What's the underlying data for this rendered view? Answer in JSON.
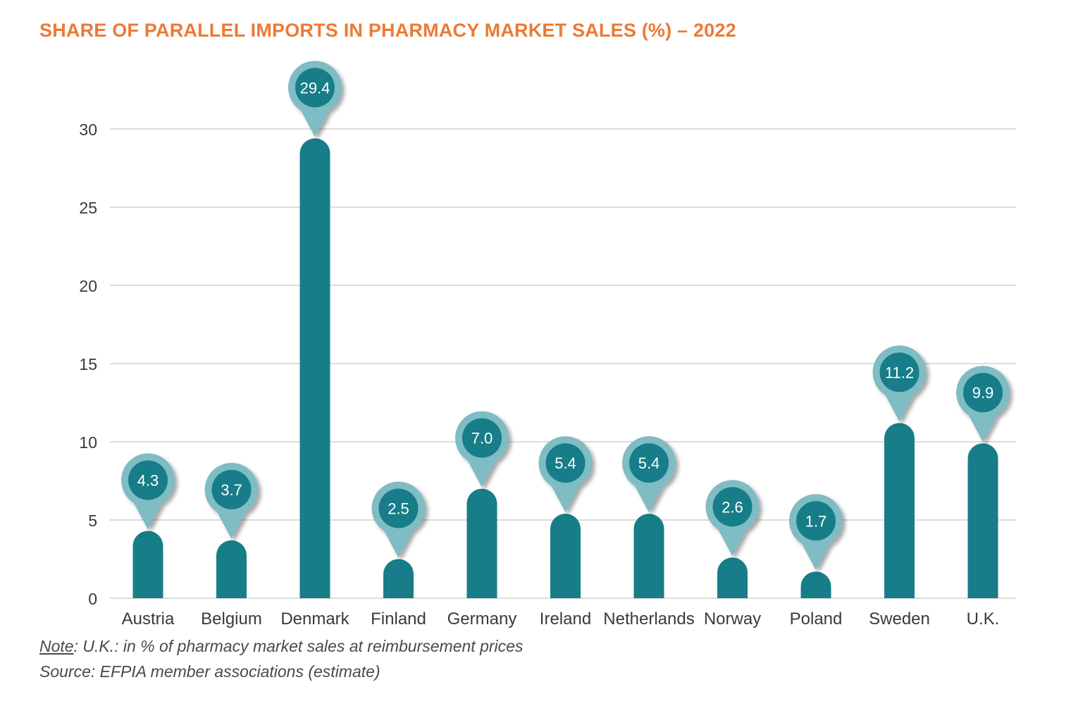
{
  "chart_data": {
    "type": "bar",
    "title": "SHARE OF PARALLEL IMPORTS IN PHARMACY MARKET SALES (%) – 2022",
    "categories": [
      "Austria",
      "Belgium",
      "Denmark",
      "Finland",
      "Germany",
      "Ireland",
      "Netherlands",
      "Norway",
      "Poland",
      "Sweden",
      "U.K."
    ],
    "values": [
      4.3,
      3.7,
      29.4,
      2.5,
      7.0,
      5.4,
      5.4,
      2.6,
      1.7,
      11.2,
      9.9
    ],
    "data_labels": [
      "4.3",
      "3.7",
      "29.4",
      "2.5",
      "7.0",
      "5.4",
      "5.4",
      "2.6",
      "1.7",
      "11.2",
      "9.9"
    ],
    "y_ticks": [
      0,
      5,
      10,
      15,
      20,
      25,
      30
    ],
    "ylim": [
      0,
      30
    ],
    "xlabel": "",
    "ylabel": "",
    "grid": true,
    "colors": {
      "bar": "#177d88",
      "marker_outer": "#7fbcc3",
      "marker_inner": "#177d88",
      "grid": "#c8c8c8",
      "title": "#ec7a35",
      "label_text": "#ffffff",
      "tick_text": "#3a3a3a"
    }
  },
  "footer": {
    "note_label": "Note",
    "note_text": ": U.K.: in % of pharmacy market sales at reimbursement prices",
    "source": "Source: EFPIA member associations (estimate)"
  }
}
